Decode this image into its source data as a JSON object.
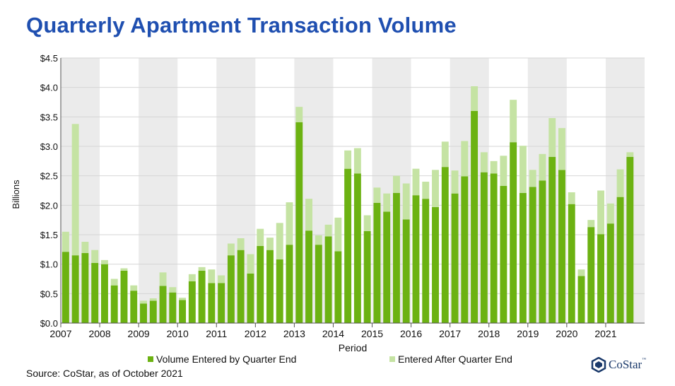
{
  "title": "Quarterly Apartment Transaction Volume",
  "source": "Source: CoStar, as of October 2021",
  "logo": {
    "text": "CoStar",
    "tm": "™"
  },
  "colors": {
    "dark_green": "#6cb212",
    "light_green": "#c5e3a3",
    "title_blue": "#1f4fb0",
    "band": "#ebebeb"
  },
  "chart_data": {
    "type": "bar",
    "stacked": true,
    "ylabel": "Billions",
    "xlabel": "Period",
    "ylim": [
      0,
      4.5
    ],
    "y_ticks": [
      "$0.0",
      "$0.5",
      "$1.0",
      "$1.5",
      "$2.0",
      "$2.5",
      "$3.0",
      "$3.5",
      "$4.0",
      "$4.5"
    ],
    "x_tick_labels": [
      "2007",
      "2008",
      "2009",
      "2010",
      "2011",
      "2012",
      "2013",
      "2014",
      "2015",
      "2016",
      "2017",
      "2018",
      "2019",
      "2020",
      "2021"
    ],
    "alternating_year_bands": true,
    "grid": true,
    "legend_position": "bottom",
    "categories": [
      "2007 Q1",
      "2007 Q2",
      "2007 Q3",
      "2007 Q4",
      "2008 Q1",
      "2008 Q2",
      "2008 Q3",
      "2008 Q4",
      "2009 Q1",
      "2009 Q2",
      "2009 Q3",
      "2009 Q4",
      "2010 Q1",
      "2010 Q2",
      "2010 Q3",
      "2010 Q4",
      "2011 Q1",
      "2011 Q2",
      "2011 Q3",
      "2011 Q4",
      "2012 Q1",
      "2012 Q2",
      "2012 Q3",
      "2012 Q4",
      "2013 Q1",
      "2013 Q2",
      "2013 Q3",
      "2013 Q4",
      "2014 Q1",
      "2014 Q2",
      "2014 Q3",
      "2014 Q4",
      "2015 Q1",
      "2015 Q2",
      "2015 Q3",
      "2015 Q4",
      "2016 Q1",
      "2016 Q2",
      "2016 Q3",
      "2016 Q4",
      "2017 Q1",
      "2017 Q2",
      "2017 Q3",
      "2017 Q4",
      "2018 Q1",
      "2018 Q2",
      "2018 Q3",
      "2018 Q4",
      "2019 Q1",
      "2019 Q2",
      "2019 Q3",
      "2019 Q4",
      "2020 Q1",
      "2020 Q2",
      "2020 Q3",
      "2020 Q4",
      "2021 Q1",
      "2021 Q2",
      "2021 Q3"
    ],
    "series": [
      {
        "name": "Volume Entered by Quarter End",
        "color": "#6cb212",
        "values": [
          1.21,
          1.15,
          1.19,
          1.02,
          1.0,
          0.64,
          0.89,
          0.55,
          0.33,
          0.38,
          0.63,
          0.52,
          0.39,
          0.71,
          0.89,
          0.68,
          0.68,
          1.15,
          1.24,
          0.84,
          1.31,
          1.24,
          1.08,
          1.33,
          3.41,
          1.57,
          1.33,
          1.47,
          1.22,
          2.62,
          2.54,
          1.56,
          2.04,
          1.89,
          2.21,
          1.76,
          2.17,
          2.11,
          1.97,
          2.65,
          2.2,
          2.49,
          3.6,
          2.56,
          2.54,
          2.33,
          3.07,
          2.21,
          2.31,
          2.42,
          2.82,
          2.6,
          2.02,
          0.8,
          1.63,
          1.51,
          1.69,
          2.14,
          2.82
        ]
      },
      {
        "name": "Entered After Quarter End",
        "color": "#c5e3a3",
        "values": [
          0.34,
          2.23,
          0.19,
          0.22,
          0.07,
          0.11,
          0.04,
          0.09,
          0.05,
          0.04,
          0.23,
          0.09,
          0.04,
          0.12,
          0.06,
          0.23,
          0.13,
          0.2,
          0.2,
          0.33,
          0.29,
          0.21,
          0.62,
          0.72,
          0.26,
          0.54,
          0.16,
          0.2,
          0.57,
          0.31,
          0.43,
          0.27,
          0.26,
          0.31,
          0.29,
          0.61,
          0.45,
          0.29,
          0.63,
          0.43,
          0.39,
          0.6,
          0.42,
          0.34,
          0.21,
          0.51,
          0.72,
          0.8,
          0.29,
          0.45,
          0.66,
          0.71,
          0.2,
          0.11,
          0.12,
          0.74,
          0.34,
          0.47,
          0.08
        ]
      }
    ]
  }
}
